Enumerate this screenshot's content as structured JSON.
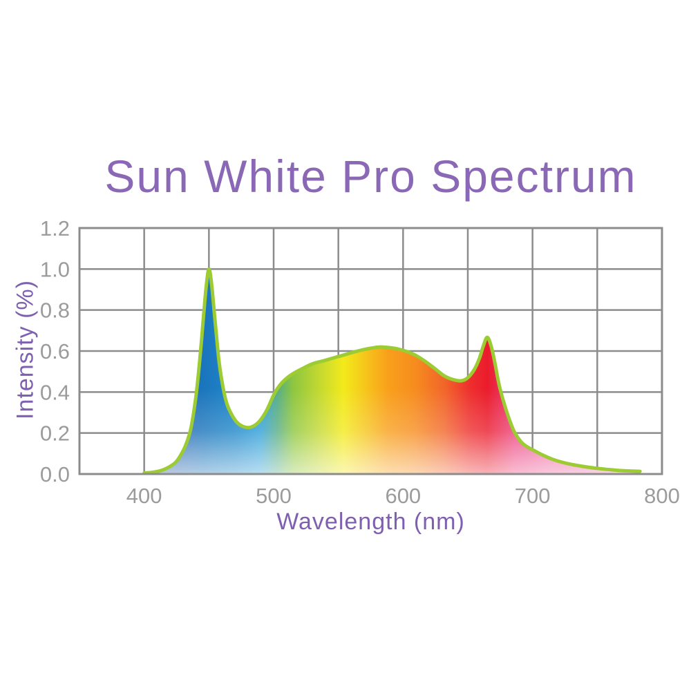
{
  "chart_data": {
    "type": "area",
    "title": "Sun White Pro Spectrum",
    "xlabel": "Wavelength (nm)",
    "ylabel": "Intensity (%)",
    "xlim": [
      350,
      800
    ],
    "ylim": [
      0,
      1.2
    ],
    "x_grid_step": 50,
    "y_grid_step": 0.2,
    "grid": true,
    "legend": false,
    "x_ticks": [
      "400",
      "500",
      "600",
      "700",
      "800"
    ],
    "x_tick_values": [
      400,
      500,
      600,
      700,
      800
    ],
    "y_ticks": [
      "0.0",
      "0.2",
      "0.4",
      "0.6",
      "0.8",
      "1.0",
      "1.2"
    ],
    "y_tick_values": [
      0,
      0.2,
      0.4,
      0.6,
      0.8,
      1.0,
      1.2
    ],
    "series": [
      {
        "name": "Sun White Pro spectrum curve",
        "points": [
          [
            400,
            0.005
          ],
          [
            406,
            0.008
          ],
          [
            412,
            0.015
          ],
          [
            418,
            0.03
          ],
          [
            424,
            0.055
          ],
          [
            428,
            0.09
          ],
          [
            432,
            0.14
          ],
          [
            436,
            0.22
          ],
          [
            440,
            0.38
          ],
          [
            443,
            0.56
          ],
          [
            446,
            0.78
          ],
          [
            448,
            0.92
          ],
          [
            450,
            1.0
          ],
          [
            452,
            0.93
          ],
          [
            455,
            0.73
          ],
          [
            458,
            0.54
          ],
          [
            461,
            0.42
          ],
          [
            464,
            0.34
          ],
          [
            468,
            0.285
          ],
          [
            472,
            0.25
          ],
          [
            476,
            0.233
          ],
          [
            481,
            0.227
          ],
          [
            486,
            0.24
          ],
          [
            490,
            0.265
          ],
          [
            495,
            0.315
          ],
          [
            500,
            0.385
          ],
          [
            505,
            0.435
          ],
          [
            511,
            0.472
          ],
          [
            517,
            0.497
          ],
          [
            524,
            0.52
          ],
          [
            531,
            0.54
          ],
          [
            539,
            0.553
          ],
          [
            547,
            0.568
          ],
          [
            555,
            0.582
          ],
          [
            563,
            0.597
          ],
          [
            571,
            0.609
          ],
          [
            577,
            0.616
          ],
          [
            582,
            0.62
          ],
          [
            589,
            0.617
          ],
          [
            596,
            0.61
          ],
          [
            603,
            0.597
          ],
          [
            610,
            0.578
          ],
          [
            617,
            0.55
          ],
          [
            625,
            0.512
          ],
          [
            632,
            0.478
          ],
          [
            639,
            0.46
          ],
          [
            645,
            0.455
          ],
          [
            650,
            0.47
          ],
          [
            655,
            0.51
          ],
          [
            659,
            0.565
          ],
          [
            662,
            0.625
          ],
          [
            665,
            0.667
          ],
          [
            668,
            0.625
          ],
          [
            671,
            0.54
          ],
          [
            674,
            0.44
          ],
          [
            678,
            0.345
          ],
          [
            682,
            0.268
          ],
          [
            686,
            0.205
          ],
          [
            691,
            0.158
          ],
          [
            696,
            0.132
          ],
          [
            702,
            0.112
          ],
          [
            708,
            0.092
          ],
          [
            715,
            0.073
          ],
          [
            722,
            0.059
          ],
          [
            730,
            0.047
          ],
          [
            739,
            0.037
          ],
          [
            748,
            0.029
          ],
          [
            757,
            0.023
          ],
          [
            766,
            0.018
          ],
          [
            774,
            0.015
          ],
          [
            783,
            0.013
          ]
        ]
      }
    ],
    "colors": {
      "title": "#8a68b5",
      "axis_label": "#7e5fb0",
      "tick_label": "#9b9b9b",
      "grid": "#8c8c8c",
      "plot_border": "#8c8c8c",
      "curve_outline": "#9ccb33",
      "background": "#ffffff",
      "fill_gradient": [
        {
          "nm": 400,
          "color": "#44549f"
        },
        {
          "nm": 445,
          "color": "#1b75bc"
        },
        {
          "nm": 470,
          "color": "#1f87ca"
        },
        {
          "nm": 490,
          "color": "#2fa0d8"
        },
        {
          "nm": 503,
          "color": "#57ad84"
        },
        {
          "nm": 515,
          "color": "#8dc63f"
        },
        {
          "nm": 535,
          "color": "#c3d831"
        },
        {
          "nm": 554,
          "color": "#f3ea1b"
        },
        {
          "nm": 588,
          "color": "#f9a01b"
        },
        {
          "nm": 610,
          "color": "#f68b1f"
        },
        {
          "nm": 632,
          "color": "#f2652a"
        },
        {
          "nm": 652,
          "color": "#ee2e2e"
        },
        {
          "nm": 665,
          "color": "#ea1c2c"
        },
        {
          "nm": 686,
          "color": "#ec3f7c"
        },
        {
          "nm": 712,
          "color": "#ee5f9c"
        },
        {
          "nm": 783,
          "color": "#f291bf"
        }
      ],
      "bottom_fade": {
        "color": "#ffffff",
        "max_opacity": 0.66
      }
    }
  }
}
